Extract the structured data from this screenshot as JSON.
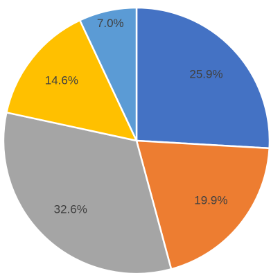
{
  "chart_data": {
    "type": "pie",
    "values": [
      25.9,
      19.9,
      32.6,
      14.6,
      7.0
    ],
    "value_labels": [
      "25.9%",
      "19.9%",
      "32.6%",
      "14.6%",
      "7.0%"
    ],
    "colors": [
      "#4472c4",
      "#ed7d31",
      "#a5a5a5",
      "#ffc000",
      "#5b9bd5"
    ]
  }
}
